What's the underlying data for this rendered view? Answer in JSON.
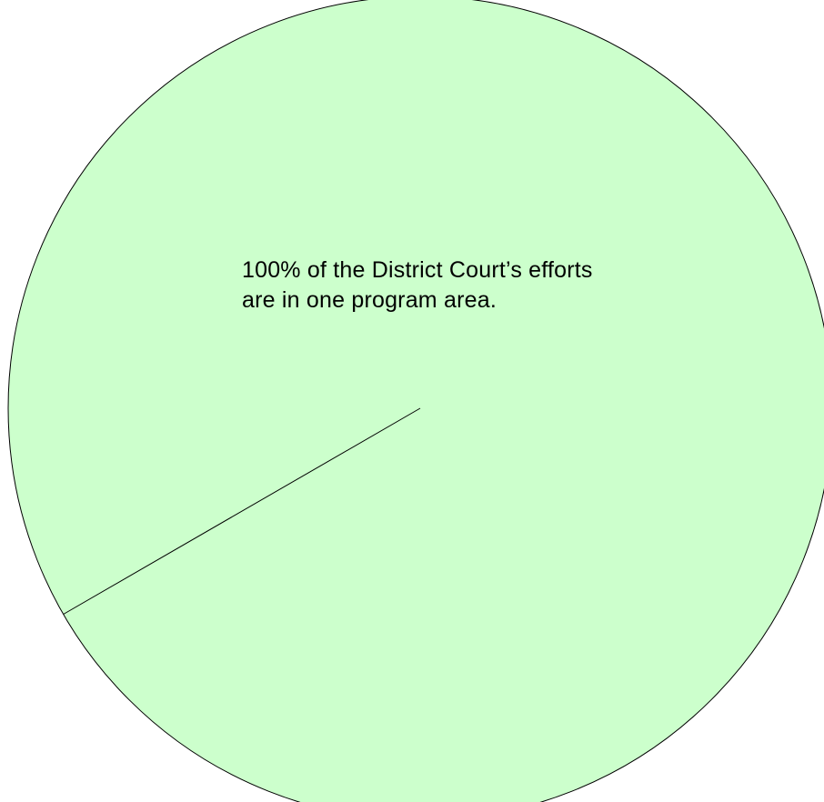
{
  "chart_data": {
    "type": "pie",
    "categories": [
      "District Court program area"
    ],
    "values": [
      100
    ],
    "annotation_lines": [
      "100% of the District Court’s efforts",
      "are in one program area."
    ],
    "colors": {
      "slice_fill": "#ccffcc",
      "slice_stroke": "#000000"
    },
    "start_angle_deg": 150
  }
}
